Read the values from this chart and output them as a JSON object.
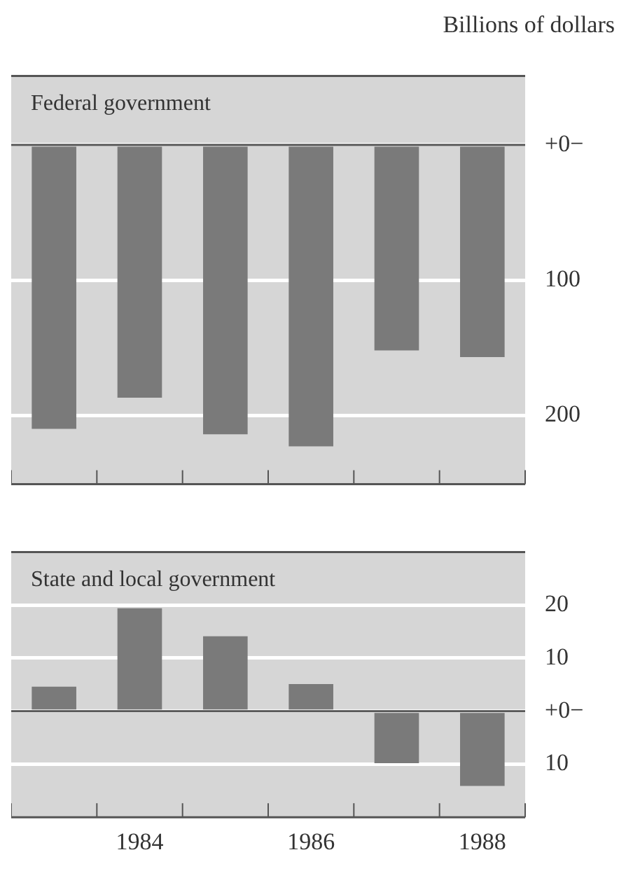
{
  "chart_data": [
    {
      "type": "bar",
      "title": "Federal government",
      "ylabel": "Billions of dollars",
      "categories": [
        null,
        "1984",
        null,
        "1986",
        null,
        "1988"
      ],
      "series": [
        {
          "color": "#7a7a7a",
          "values": [
            -210,
            -187,
            -214,
            -223,
            -152,
            -157
          ]
        }
      ],
      "ylim": [
        -251,
        51
      ],
      "yticks": [
        {
          "value": 0,
          "label": "+0−"
        },
        {
          "value": -100,
          "label": "100"
        },
        {
          "value": -200,
          "label": "200"
        }
      ],
      "grid": "y",
      "legend": false,
      "tick_labels": "y",
      "ref_lines": [
        {
          "axis": "y",
          "value": 0,
          "color": "#555555"
        }
      ]
    },
    {
      "type": "bar",
      "title": "State and local government",
      "categories": [
        null,
        "1984",
        null,
        "1986",
        null,
        "1988"
      ],
      "series": [
        {
          "color": "#7a7a7a",
          "values": [
            4.6,
            19.4,
            14.1,
            5.1,
            -9.8,
            -14.1
          ]
        }
      ],
      "ylim": [
        -20,
        30
      ],
      "yticks": [
        {
          "value": 20,
          "label": "20"
        },
        {
          "value": 10,
          "label": "10"
        },
        {
          "value": 0,
          "label": "+0−"
        },
        {
          "value": -10,
          "label": "10"
        }
      ],
      "grid": "y",
      "legend": false,
      "ref_lines": [
        {
          "axis": "y",
          "value": 0,
          "color": "#555555"
        }
      ]
    }
  ]
}
